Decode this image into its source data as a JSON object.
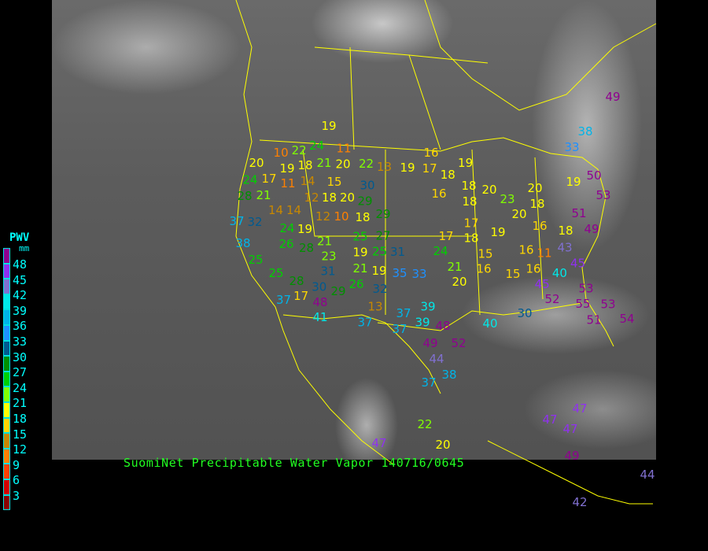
{
  "title": "SuomiNet Precipitable Water Vapor 140716/0645",
  "legend": {
    "title": "PWV",
    "unit": "mm",
    "ticks": [
      "48",
      "45",
      "42",
      "39",
      "36",
      "33",
      "30",
      "27",
      "24",
      "21",
      "18",
      "15",
      "12",
      "9",
      "6",
      "3"
    ],
    "colors": [
      "#900090",
      "#9030f0",
      "#8070d0",
      "#00e8e8",
      "#00b4e8",
      "#1e90ff",
      "#005a90",
      "#009000",
      "#00d000",
      "#80ff00",
      "#ffff00",
      "#ffd700",
      "#c88800",
      "#ff8000",
      "#ff4000",
      "#d40000",
      "#8b0000"
    ]
  },
  "stations": [
    "19",
    "10",
    "22",
    "24",
    "11",
    "20",
    "19",
    "18",
    "21",
    "20",
    "22",
    "13",
    "19",
    "16",
    "17",
    "18",
    "19",
    "24",
    "17",
    "11",
    "14",
    "15",
    "30",
    "29",
    "20",
    "18",
    "12",
    "16",
    "18",
    "20",
    "18",
    "23",
    "20",
    "18",
    "19",
    "50",
    "53",
    "21",
    "28",
    "14",
    "14",
    "12",
    "10",
    "18",
    "29",
    "37",
    "32",
    "24",
    "19",
    "25",
    "27",
    "17",
    "17",
    "18",
    "19",
    "20",
    "16",
    "18",
    "51",
    "49",
    "38",
    "26",
    "28",
    "21",
    "19",
    "25",
    "31",
    "24",
    "15",
    "16",
    "11",
    "43",
    "45",
    "25",
    "23",
    "31",
    "21",
    "19",
    "20",
    "21",
    "16",
    "15",
    "16",
    "40",
    "35",
    "33",
    "25",
    "28",
    "30",
    "26",
    "32",
    "45",
    "53",
    "29",
    "48",
    "17",
    "37",
    "41",
    "37",
    "13",
    "37",
    "37",
    "39",
    "39",
    "48",
    "40",
    "30",
    "52",
    "55",
    "53",
    "51",
    "54",
    "49",
    "52",
    "44",
    "37",
    "38",
    "22",
    "47",
    "47",
    "47",
    "47",
    "49",
    "44",
    "42",
    "33",
    "38",
    "49",
    "20"
  ]
}
